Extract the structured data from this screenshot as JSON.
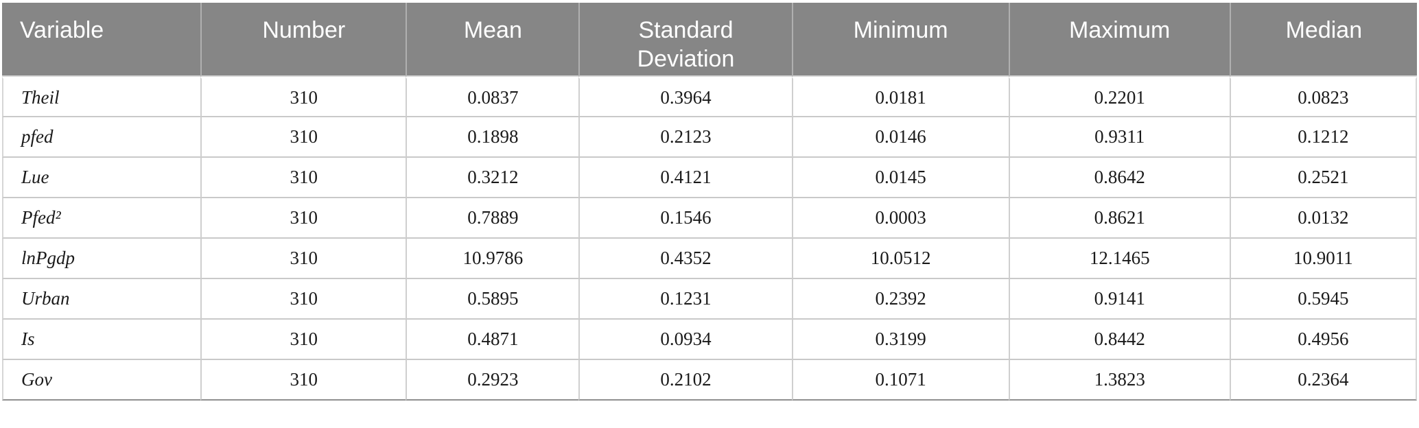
{
  "table": {
    "columns": [
      {
        "key": "variable",
        "label": "Variable"
      },
      {
        "key": "number",
        "label": "Number"
      },
      {
        "key": "mean",
        "label": "Mean"
      },
      {
        "key": "sd",
        "label": "Standard Deviation"
      },
      {
        "key": "min",
        "label": "Minimum"
      },
      {
        "key": "max",
        "label": "Maximum"
      },
      {
        "key": "median",
        "label": "Median"
      }
    ],
    "rows": [
      {
        "variable": "Theil",
        "number": "310",
        "mean": "0.0837",
        "sd": "0.3964",
        "min": "0.0181",
        "max": "0.2201",
        "median": "0.0823"
      },
      {
        "variable": "pfed",
        "number": "310",
        "mean": "0.1898",
        "sd": "0.2123",
        "min": "0.0146",
        "max": "0.9311",
        "median": "0.1212"
      },
      {
        "variable": "Lue",
        "number": "310",
        "mean": "0.3212",
        "sd": "0.4121",
        "min": "0.0145",
        "max": "0.8642",
        "median": "0.2521"
      },
      {
        "variable": "Pfed²",
        "number": "310",
        "mean": "0.7889",
        "sd": "0.1546",
        "min": "0.0003",
        "max": "0.8621",
        "median": "0.0132"
      },
      {
        "variable": "lnPgdp",
        "number": "310",
        "mean": "10.9786",
        "sd": "0.4352",
        "min": "10.0512",
        "max": "12.1465",
        "median": "10.9011"
      },
      {
        "variable": "Urban",
        "number": "310",
        "mean": "0.5895",
        "sd": "0.1231",
        "min": "0.2392",
        "max": "0.9141",
        "median": "0.5945"
      },
      {
        "variable": "Is",
        "number": "310",
        "mean": "0.4871",
        "sd": "0.0934",
        "min": "0.3199",
        "max": "0.8442",
        "median": "0.4956"
      },
      {
        "variable": "Gov",
        "number": "310",
        "mean": "0.2923",
        "sd": "0.2102",
        "min": "0.1071",
        "max": "1.3823",
        "median": "0.2364"
      }
    ],
    "column_widths_pct": [
      14.03,
      14.5,
      12.23,
      15.04,
      15.33,
      15.62,
      13.25
    ]
  },
  "colors": {
    "header_bg": "#868686",
    "header_text": "#ffffff",
    "body_text": "#1a1a1a",
    "row_line": "#c9c9c9",
    "bottom_line": "#8f8f8f"
  },
  "chart_data": {
    "type": "table",
    "title": "",
    "columns": [
      "Variable",
      "Number",
      "Mean",
      "Standard Deviation",
      "Minimum",
      "Maximum",
      "Median"
    ],
    "rows": [
      [
        "Theil",
        310,
        0.0837,
        0.3964,
        0.0181,
        0.2201,
        0.0823
      ],
      [
        "pfed",
        310,
        0.1898,
        0.2123,
        0.0146,
        0.9311,
        0.1212
      ],
      [
        "Lue",
        310,
        0.3212,
        0.4121,
        0.0145,
        0.8642,
        0.2521
      ],
      [
        "Pfed²",
        310,
        0.7889,
        0.1546,
        0.0003,
        0.8621,
        0.0132
      ],
      [
        "lnPgdp",
        310,
        10.9786,
        0.4352,
        10.0512,
        12.1465,
        10.9011
      ],
      [
        "Urban",
        310,
        0.5895,
        0.1231,
        0.2392,
        0.9141,
        0.5945
      ],
      [
        "Is",
        310,
        0.4871,
        0.0934,
        0.3199,
        0.8442,
        0.4956
      ],
      [
        "Gov",
        310,
        0.2923,
        0.2102,
        0.1071,
        1.3823,
        0.2364
      ]
    ]
  }
}
